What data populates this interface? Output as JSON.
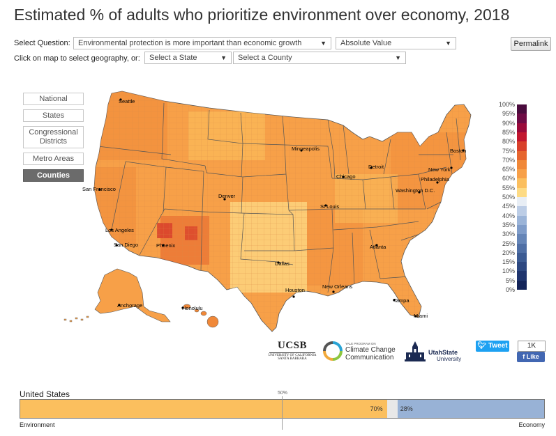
{
  "title": "Estimated % of adults who prioritize environment over economy, 2018",
  "controls": {
    "select_question_label": "Select Question:",
    "question_value": "Environmental protection is more important than economic growth",
    "value_type": "Absolute Value",
    "geo_label": "Click on map to select geography, or:",
    "state_select": "Select a State",
    "county_select": "Select a County",
    "permalink": "Permalink"
  },
  "geo_buttons": [
    "National",
    "States",
    "Congressional Districts",
    "Metro Areas",
    "Counties"
  ],
  "active_geo": "Counties",
  "cities": [
    "Seattle",
    "San Francisco",
    "Los Angeles",
    "San Diego",
    "Phoenix",
    "Denver",
    "Dallas",
    "Houston",
    "Minneapolis",
    "Chicago",
    "St Louis",
    "New Orleans",
    "Atlanta",
    "Tampa",
    "Miami",
    "Detroit",
    "Boston",
    "New York",
    "Philadelphia",
    "Washington D.C.",
    "Anchorage",
    "Honolulu"
  ],
  "legend": {
    "ticks": [
      "100%",
      "95%",
      "90%",
      "85%",
      "80%",
      "75%",
      "70%",
      "65%",
      "60%",
      "55%",
      "50%",
      "45%",
      "40%",
      "35%",
      "30%",
      "25%",
      "20%",
      "15%",
      "10%",
      "5%",
      "0%"
    ],
    "colors": [
      "#4a0c3d",
      "#6e0b45",
      "#9a0a3a",
      "#c2172f",
      "#d8402b",
      "#e6652e",
      "#f08838",
      "#f7a048",
      "#fbbf5e",
      "#fddb85",
      "#e8eef5",
      "#bccde6",
      "#9bb4d8",
      "#7f9cc9",
      "#6585b7",
      "#4f6fa5",
      "#3c5b93",
      "#2d4881",
      "#1f356e",
      "#132459"
    ]
  },
  "logos": {
    "ucsb": "UCSB",
    "ucsb_sub1": "UNIVERSITY OF CALIFORNIA",
    "ucsb_sub2": "SANTA BARBARA",
    "yale_small": "YALE PROGRAM ON",
    "yale_line1": "Climate Change",
    "yale_line2": "Communication",
    "utah_line1": "UtahState",
    "utah_line2": "University"
  },
  "social": {
    "tweet": "Tweet",
    "like_count": "1K",
    "like": "Like"
  },
  "summary_bar": {
    "geography": "United States",
    "midline_label": "50%",
    "environment_pct": 70,
    "economy_pct": 28,
    "environment_label": "70%",
    "economy_label": "28%",
    "left_label": "Environment",
    "right_label": "Economy",
    "env_color": "#fbbf5e",
    "econ_color": "#98b2d6",
    "gap_color": "#e8e8e8"
  }
}
